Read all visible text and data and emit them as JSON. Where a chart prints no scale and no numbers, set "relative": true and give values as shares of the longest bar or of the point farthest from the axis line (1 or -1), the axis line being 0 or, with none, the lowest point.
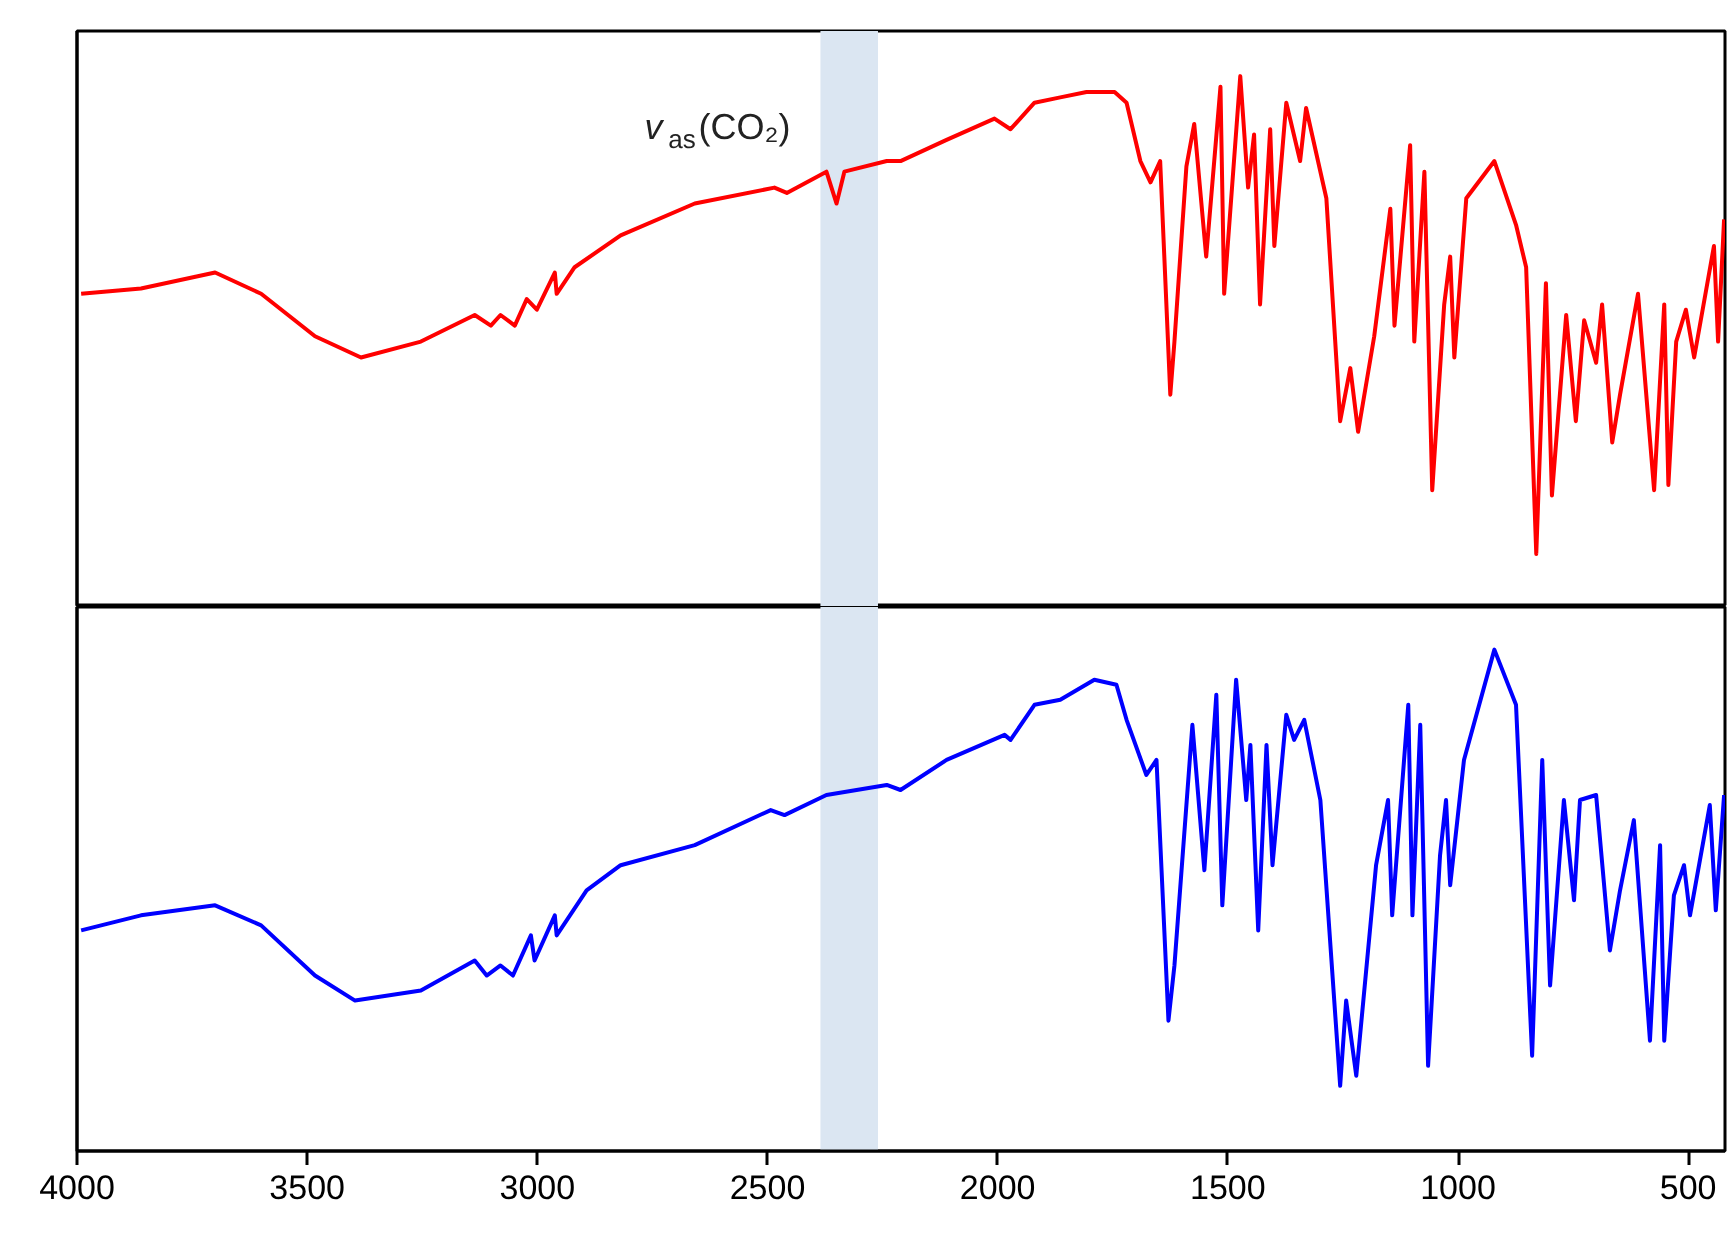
{
  "chart_data": [
    {
      "type": "line",
      "relative": true,
      "xlim": [
        4000,
        420
      ],
      "tick_labels": false,
      "grid": false,
      "bands": [
        {
          "axis": "x",
          "from": 2385,
          "to": 2260,
          "label": "v$_{as}$(CO₂)",
          "color": "#dbe6f2"
        }
      ],
      "series": [
        {
          "color": "#ff0000",
          "x": [
            3991,
            3861,
            3700,
            3600,
            3483,
            3383,
            3253,
            3136,
            3101,
            3080,
            3049,
            3023,
            3001,
            2962,
            2958,
            2919,
            2819,
            2658,
            2485,
            2458,
            2372,
            2350,
            2333,
            2241,
            2211,
            2111,
            2007,
            1972,
            1920,
            1864,
            1807,
            1746,
            1720,
            1690,
            1668,
            1647,
            1625,
            1616,
            1590,
            1573,
            1547,
            1516,
            1508,
            1473,
            1456,
            1443,
            1430,
            1408,
            1399,
            1373,
            1343,
            1330,
            1286,
            1256,
            1234,
            1217,
            1182,
            1147,
            1138,
            1104,
            1095,
            1073,
            1056,
            1030,
            1017,
            1008,
            982,
            921,
            874,
            852,
            830,
            809,
            796,
            765,
            744,
            726,
            700,
            687,
            665,
            648,
            609,
            574,
            552,
            543,
            526,
            505,
            487,
            444,
            435,
            422
          ],
          "values": [
            0.59,
            0.6,
            0.63,
            0.59,
            0.51,
            0.47,
            0.5,
            0.55,
            0.53,
            0.55,
            0.53,
            0.58,
            0.56,
            0.63,
            0.59,
            0.64,
            0.7,
            0.76,
            0.79,
            0.78,
            0.82,
            0.76,
            0.82,
            0.84,
            0.84,
            0.88,
            0.92,
            0.9,
            0.95,
            0.96,
            0.97,
            0.97,
            0.95,
            0.84,
            0.8,
            0.84,
            0.4,
            0.5,
            0.83,
            0.91,
            0.66,
            0.98,
            0.59,
            1,
            0.79,
            0.89,
            0.57,
            0.9,
            0.68,
            0.95,
            0.84,
            0.94,
            0.77,
            0.35,
            0.45,
            0.33,
            0.51,
            0.75,
            0.53,
            0.87,
            0.5,
            0.82,
            0.22,
            0.57,
            0.66,
            0.47,
            0.77,
            0.84,
            0.72,
            0.64,
            0.1,
            0.61,
            0.21,
            0.55,
            0.35,
            0.54,
            0.46,
            0.57,
            0.31,
            0.4,
            0.59,
            0.22,
            0.57,
            0.23,
            0.5,
            0.56,
            0.47,
            0.68,
            0.5,
            0.73
          ]
        }
      ]
    },
    {
      "type": "line",
      "relative": true,
      "xlim": [
        4000,
        420
      ],
      "tick_labels": "x",
      "grid": false,
      "xticks": [
        4000,
        3500,
        3000,
        2500,
        2000,
        1500,
        1000,
        500
      ],
      "bands": [
        {
          "axis": "x",
          "from": 2385,
          "to": 2260,
          "color": "#dbe6f2"
        }
      ],
      "series": [
        {
          "color": "#0000ff",
          "x": [
            3991,
            3861,
            3700,
            3600,
            3483,
            3396,
            3253,
            3136,
            3110,
            3080,
            3053,
            3014,
            3006,
            2962,
            2958,
            2893,
            2819,
            2658,
            2493,
            2463,
            2372,
            2241,
            2211,
            2111,
            1985,
            1972,
            1920,
            1864,
            1790,
            1742,
            1720,
            1677,
            1655,
            1629,
            1616,
            1577,
            1551,
            1525,
            1512,
            1482,
            1460,
            1451,
            1434,
            1416,
            1403,
            1373,
            1356,
            1334,
            1299,
            1256,
            1243,
            1221,
            1178,
            1152,
            1143,
            1108,
            1099,
            1082,
            1065,
            1039,
            1026,
            1017,
            987,
            921,
            874,
            839,
            817,
            800,
            770,
            748,
            735,
            700,
            670,
            648,
            618,
            583,
            561,
            552,
            531,
            509,
            496,
            453,
            440,
            422
          ],
          "values": [
            0.44,
            0.47,
            0.49,
            0.45,
            0.35,
            0.3,
            0.32,
            0.38,
            0.35,
            0.37,
            0.35,
            0.43,
            0.38,
            0.47,
            0.43,
            0.52,
            0.57,
            0.61,
            0.68,
            0.67,
            0.71,
            0.73,
            0.72,
            0.78,
            0.83,
            0.82,
            0.89,
            0.9,
            0.94,
            0.93,
            0.86,
            0.75,
            0.78,
            0.26,
            0.37,
            0.85,
            0.56,
            0.91,
            0.49,
            0.94,
            0.7,
            0.81,
            0.44,
            0.81,
            0.57,
            0.87,
            0.82,
            0.86,
            0.7,
            0.13,
            0.3,
            0.15,
            0.57,
            0.7,
            0.47,
            0.89,
            0.47,
            0.85,
            0.17,
            0.59,
            0.7,
            0.53,
            0.78,
            1,
            0.89,
            0.19,
            0.78,
            0.33,
            0.7,
            0.5,
            0.7,
            0.71,
            0.4,
            0.52,
            0.66,
            0.22,
            0.61,
            0.22,
            0.51,
            0.57,
            0.47,
            0.69,
            0.48,
            0.71
          ]
        }
      ]
    }
  ]
}
